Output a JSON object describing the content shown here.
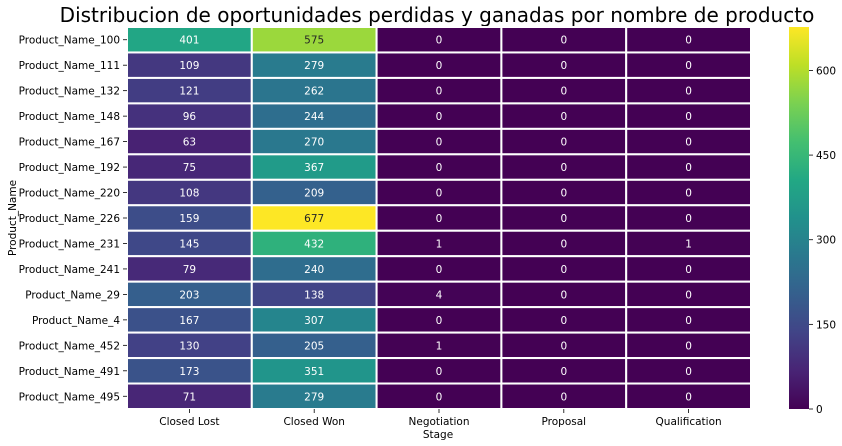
{
  "chart_data": {
    "type": "heatmap",
    "title": "Distribucion de oportunidades perdidas y ganadas por nombre de producto",
    "xlabel": "Stage",
    "ylabel": "Product_Name",
    "columns": [
      "Closed Lost",
      "Closed Won",
      "Negotiation",
      "Proposal",
      "Qualification"
    ],
    "rows": [
      "Product_Name_100",
      "Product_Name_111",
      "Product_Name_132",
      "Product_Name_148",
      "Product_Name_167",
      "Product_Name_192",
      "Product_Name_220",
      "Product_Name_226",
      "Product_Name_231",
      "Product_Name_241",
      "Product_Name_29",
      "Product_Name_4",
      "Product_Name_452",
      "Product_Name_491",
      "Product_Name_495"
    ],
    "values": [
      [
        401,
        575,
        0,
        0,
        0
      ],
      [
        109,
        279,
        0,
        0,
        0
      ],
      [
        121,
        262,
        0,
        0,
        0
      ],
      [
        96,
        244,
        0,
        0,
        0
      ],
      [
        63,
        270,
        0,
        0,
        0
      ],
      [
        75,
        367,
        0,
        0,
        0
      ],
      [
        108,
        209,
        0,
        0,
        0
      ],
      [
        159,
        677,
        0,
        0,
        0
      ],
      [
        145,
        432,
        1,
        0,
        1
      ],
      [
        79,
        240,
        0,
        0,
        0
      ],
      [
        203,
        138,
        4,
        0,
        0
      ],
      [
        167,
        307,
        0,
        0,
        0
      ],
      [
        130,
        205,
        1,
        0,
        0
      ],
      [
        173,
        351,
        0,
        0,
        0
      ],
      [
        71,
        279,
        0,
        0,
        0
      ]
    ],
    "vmin": 0,
    "vmax": 677,
    "colormap": "viridis",
    "colorbar_ticks": [
      "0",
      "150",
      "300",
      "450",
      "600"
    ],
    "annotate": true,
    "cell_border_color": "#ffffff"
  }
}
